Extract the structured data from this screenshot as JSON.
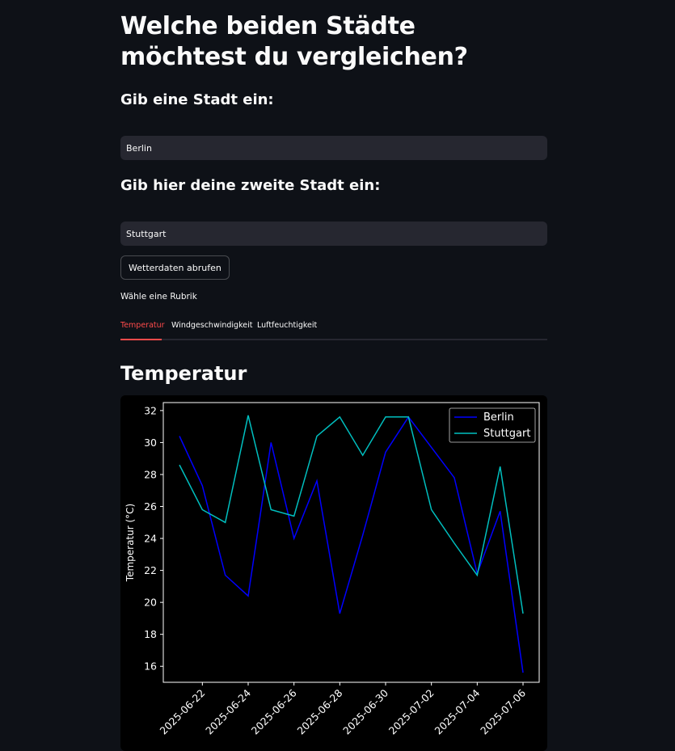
{
  "page": {
    "title": "Welche beiden Städte möchtest du vergleichen?",
    "city1_label": "Gib eine Stadt ein:",
    "city1_value": "Berlin",
    "city2_label": "Gib hier deine zweite Stadt ein:",
    "city2_value": "Stuttgart",
    "fetch_button": "Wetterdaten abrufen",
    "rubric_label": "Wähle eine Rubrik",
    "tabs": [
      {
        "label": "Temperatur",
        "active": true
      },
      {
        "label": "Windgeschwindigkeit",
        "active": false
      },
      {
        "label": "Luftfeuchtigkeit",
        "active": false
      }
    ],
    "section_title": "Temperatur",
    "accent_color": "#ff4b4b"
  },
  "chart_data": {
    "type": "line",
    "ylabel": "Temperatur (°C)",
    "ylim": [
      15,
      32.5
    ],
    "yticks": [
      16,
      18,
      20,
      22,
      24,
      26,
      28,
      30,
      32
    ],
    "x": [
      "2025-06-21",
      "2025-06-22",
      "2025-06-23",
      "2025-06-24",
      "2025-06-25",
      "2025-06-26",
      "2025-06-27",
      "2025-06-28",
      "2025-06-29",
      "2025-06-30",
      "2025-07-01",
      "2025-07-02",
      "2025-07-03",
      "2025-07-04",
      "2025-07-05",
      "2025-07-06"
    ],
    "xticks": [
      "2025-06-22",
      "2025-06-24",
      "2025-06-26",
      "2025-06-28",
      "2025-06-30",
      "2025-07-02",
      "2025-07-04",
      "2025-07-06"
    ],
    "legend": "top-right",
    "grid": false,
    "series": [
      {
        "name": "Berlin",
        "color": "#0000ff",
        "values": [
          30.4,
          27.3,
          21.7,
          20.4,
          30.0,
          24.0,
          27.6,
          19.3,
          24.2,
          29.4,
          31.6,
          29.7,
          27.8,
          21.8,
          25.7,
          15.6
        ]
      },
      {
        "name": "Stuttgart",
        "color": "#00bfbf",
        "values": [
          28.6,
          25.8,
          25.0,
          31.7,
          25.8,
          25.4,
          30.4,
          31.6,
          29.2,
          31.6,
          31.6,
          25.8,
          23.7,
          21.7,
          28.5,
          19.3
        ]
      }
    ]
  }
}
